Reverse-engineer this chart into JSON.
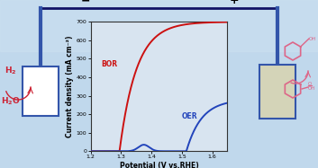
{
  "bg_color": "#c0d8ec",
  "plot_face": "#d8e4f0",
  "xlabel": "Potential (V vs.RHE)",
  "ylabel": "Current density (mA cm⁻²)",
  "xlim": [
    1.2,
    1.65
  ],
  "ylim": [
    0,
    700
  ],
  "xticks": [
    1.2,
    1.3,
    1.4,
    1.5,
    1.6
  ],
  "yticks": [
    0,
    100,
    200,
    300,
    400,
    500,
    600,
    700
  ],
  "bor_label": "BOR",
  "oer_label": "OER",
  "bor_color": "#cc1111",
  "oer_color": "#2244bb",
  "wire_color": "#111166",
  "elec_edge": "#3355aa",
  "elec_left_face": "#ffffff",
  "elec_right_face": "#d4d4b8",
  "h2_color": "#cc2233",
  "mol_color": "#dd6688",
  "minus_sym": "−",
  "plus_sym": "+"
}
